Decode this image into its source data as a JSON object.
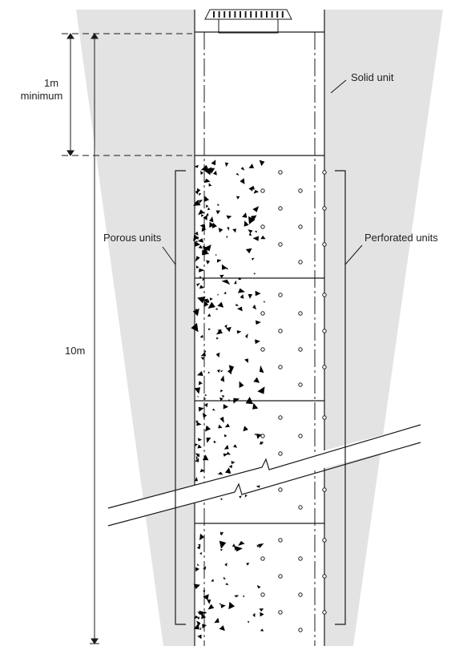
{
  "labels": {
    "dim_min_line1": "1m",
    "dim_min_line2": "minimum",
    "solid_unit": "Solid unit",
    "porous_units": "Porous units",
    "perforated_units": "Perforated units",
    "total_depth": "10m"
  },
  "colors": {
    "ground": "#e3e3e3",
    "line": "#1a1a1a",
    "fill": "#ffffff",
    "aggregate": "#000000"
  }
}
